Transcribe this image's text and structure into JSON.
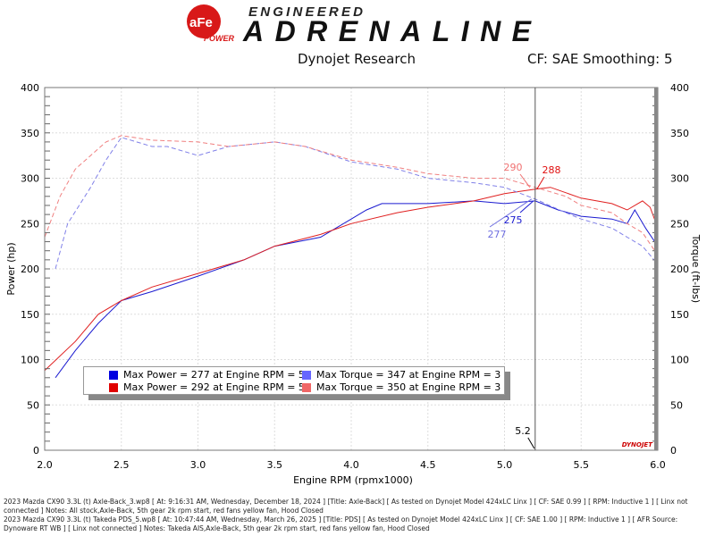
{
  "header": {
    "logo_brand": "aFe POWER",
    "logo_tagline": "ENGINEERED",
    "logo_title": "ADRENALINE",
    "center": "Dynojet Research",
    "right": "CF: SAE Smoothing: 5"
  },
  "colors": {
    "run1_power": "#1010d0",
    "run1_torque": "#7070f0",
    "run2_power": "#e01010",
    "run2_torque": "#f07070"
  },
  "legend": [
    {
      "text": "Max Power = 277 at Engine RPM = 5",
      "color": "#0000e0"
    },
    {
      "text": "Max Torque = 347 at Engine RPM = 3",
      "color": "#6666ff"
    },
    {
      "text": "Max Power = 292 at Engine RPM = 5",
      "color": "#e00000"
    },
    {
      "text": "Max Torque = 350 at Engine RPM = 3",
      "color": "#f06666"
    }
  ],
  "cursor": {
    "x": "5.2",
    "labels": [
      "290",
      "288",
      "275",
      "277"
    ]
  },
  "watermark": "DYNOJET",
  "chart_data": {
    "type": "line",
    "xlabel": "Engine RPM (rpmx1000)",
    "ylabel": "Power (hp)",
    "y2label": "Torque (ft-lbs)",
    "xlim": [
      2.0,
      6.0
    ],
    "ylim": [
      0,
      400
    ],
    "y2lim": [
      0,
      400
    ],
    "xticks": [
      "2.0",
      "2.5",
      "3.0",
      "3.5",
      "4.0",
      "4.5",
      "5.0",
      "5.5",
      "6.0"
    ],
    "yticks": [
      "0",
      "50",
      "100",
      "150",
      "200",
      "250",
      "300",
      "350",
      "400"
    ],
    "grid": true,
    "series": [
      {
        "axis": "left",
        "style": "solid",
        "color": "#1a1ad0",
        "x": [
          2.07,
          2.2,
          2.35,
          2.5,
          2.7,
          3.0,
          3.3,
          3.5,
          3.8,
          4.0,
          4.1,
          4.2,
          4.5,
          4.8,
          5.0,
          5.2,
          5.35,
          5.5,
          5.7,
          5.8,
          5.85,
          5.92,
          6.0
        ],
        "y": [
          80,
          110,
          140,
          165,
          175,
          192,
          210,
          225,
          235,
          255,
          265,
          272,
          272,
          275,
          272,
          275,
          265,
          258,
          255,
          250,
          265,
          245,
          225
        ]
      },
      {
        "axis": "left",
        "style": "solid",
        "color": "#e02020",
        "x": [
          2.0,
          2.2,
          2.35,
          2.5,
          2.7,
          3.0,
          3.3,
          3.5,
          3.8,
          4.0,
          4.3,
          4.5,
          4.8,
          5.0,
          5.2,
          5.3,
          5.5,
          5.7,
          5.8,
          5.9,
          5.95,
          6.0
        ],
        "y": [
          88,
          120,
          150,
          165,
          180,
          195,
          210,
          225,
          238,
          250,
          262,
          268,
          275,
          283,
          288,
          290,
          278,
          272,
          265,
          275,
          268,
          245
        ]
      },
      {
        "axis": "right",
        "style": "dashed",
        "color": "#8080e8",
        "x": [
          2.07,
          2.15,
          2.3,
          2.4,
          2.5,
          2.7,
          2.8,
          3.0,
          3.2,
          3.5,
          3.7,
          4.0,
          4.3,
          4.5,
          4.8,
          5.0,
          5.2,
          5.4,
          5.5,
          5.7,
          5.8,
          5.9,
          6.0
        ],
        "y": [
          200,
          250,
          290,
          320,
          345,
          335,
          335,
          325,
          335,
          340,
          335,
          318,
          310,
          300,
          295,
          290,
          277,
          262,
          255,
          245,
          235,
          225,
          205
        ]
      },
      {
        "axis": "right",
        "style": "dashed",
        "color": "#f08080",
        "x": [
          2.0,
          2.1,
          2.2,
          2.3,
          2.4,
          2.5,
          2.7,
          3.0,
          3.2,
          3.5,
          3.7,
          4.0,
          4.3,
          4.5,
          4.8,
          5.0,
          5.2,
          5.4,
          5.5,
          5.7,
          5.8,
          5.9,
          6.0
        ],
        "y": [
          235,
          280,
          310,
          325,
          340,
          347,
          342,
          340,
          335,
          340,
          335,
          320,
          312,
          305,
          300,
          300,
          290,
          280,
          270,
          262,
          250,
          240,
          215
        ]
      }
    ]
  },
  "footer": [
    "2023 Mazda CX90 3.3L (t) Axle-Back_3.wp8 [ At: 9:16:31 AM, Wednesday, December 18, 2024 ] [Title: Axle-Back]  [ As tested on Dynojet Model 424xLC Linx ] [ CF: SAE 0.99 ] [ RPM: Inductive 1 ] [ Linx not connected ] Notes: All stock,Axle-Back, 5th gear 2k rpm start, red fans yellow fan, Hood Closed",
    "2023 Mazda CX90 3.3L (t)  Takeda PDS_5.wp8 [ At: 10:47:44 AM, Wednesday, March 26, 2025 ] [Title: PDS]  [ As tested on Dynojet Model 424xLC Linx ] [ CF: SAE 1.00 ] [ RPM: Inductive 1 ] [ AFR Source: Dynoware RT WB ] [ Linx not connected ] Notes: Takeda AIS,Axle-Back, 5th gear 2k rpm start, red fans yellow fan, Hood Closed"
  ]
}
